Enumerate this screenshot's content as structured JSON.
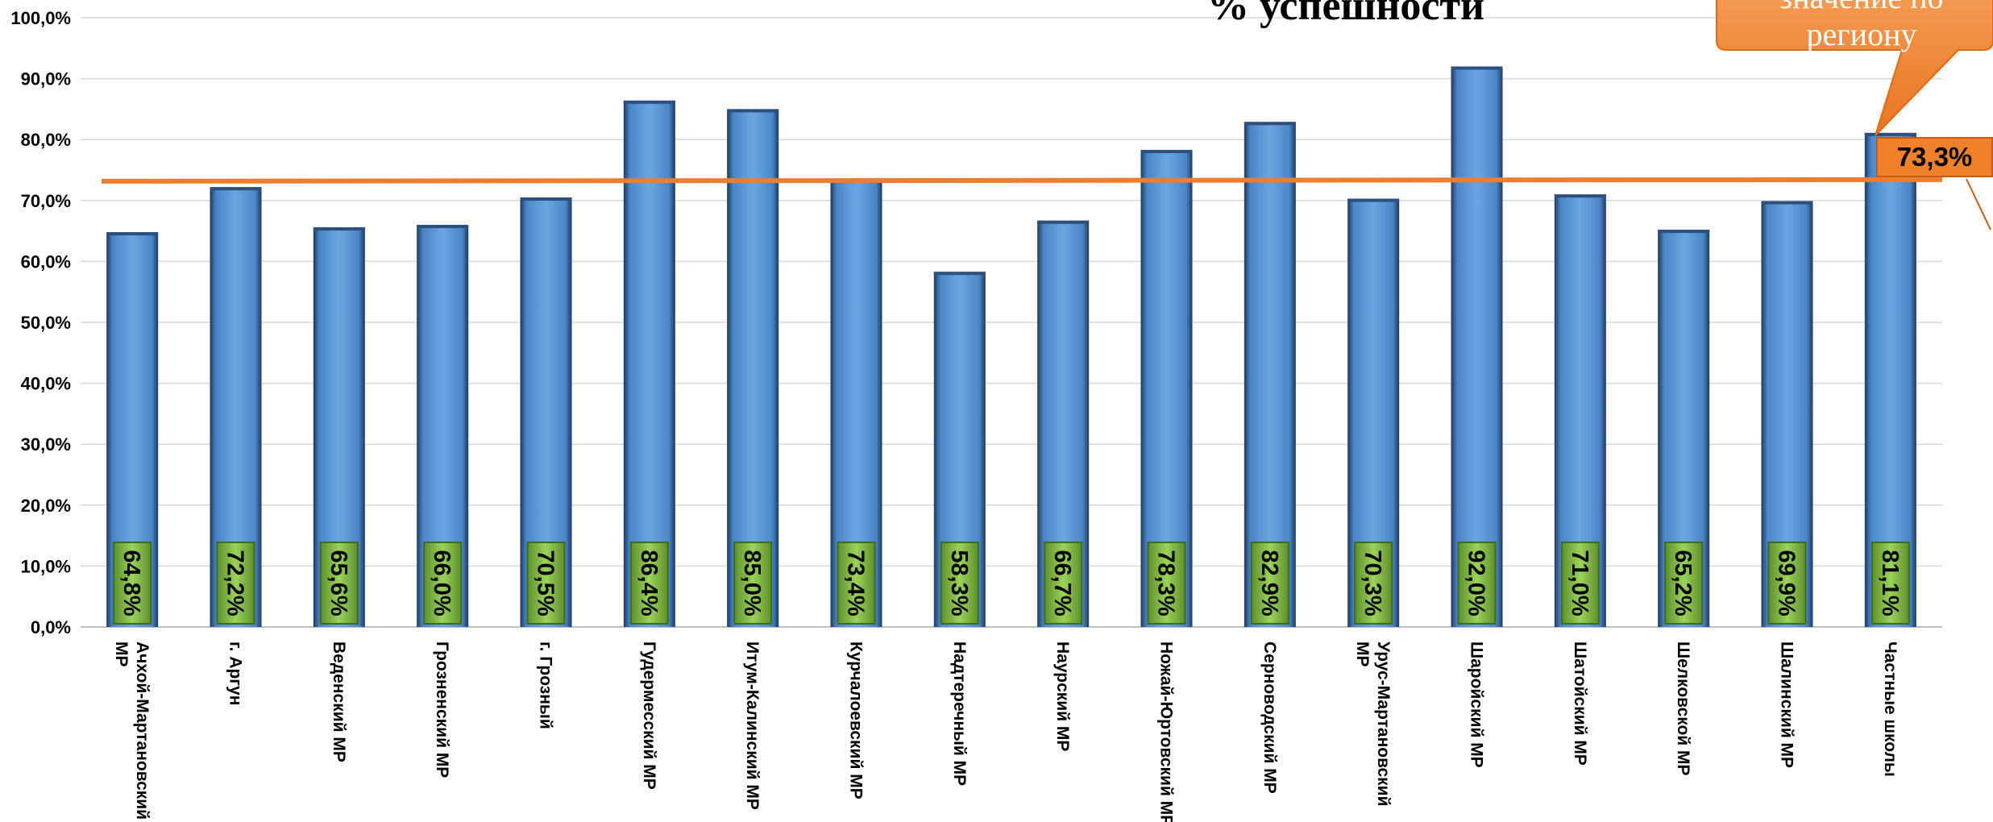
{
  "chart_data": {
    "type": "bar",
    "title": "% успешности",
    "categories": [
      "Ачхой-Мартановский МР",
      "г. Аргун",
      "Веденский МР",
      "Грозненский МР",
      "г. Грозный",
      "Гудермесский МР",
      "Итум-Калинский МР",
      "Курчалоевский МР",
      "Надтеречный МР",
      "Наурский МР",
      "Ножай-Юртовский МР",
      "Серноводский МР",
      "Урус-Мартановский МР",
      "Шаройский МР",
      "Шатойский МР",
      "Шелковской МР",
      "Шалинский МР",
      "Частные школы"
    ],
    "values": [
      64.8,
      72.2,
      65.6,
      66.0,
      70.5,
      86.4,
      85.0,
      73.4,
      58.3,
      66.7,
      78.3,
      82.9,
      70.3,
      92.0,
      71.0,
      65.2,
      69.9,
      81.1
    ],
    "value_labels": [
      "64,8%",
      "72,2%",
      "65,6%",
      "66,0%",
      "70,5%",
      "86,4%",
      "85,0%",
      "73,4%",
      "58,3%",
      "66,7%",
      "78,3%",
      "82,9%",
      "70,3%",
      "92,0%",
      "71,0%",
      "65,2%",
      "69,9%",
      "81,1%"
    ],
    "ylim": [
      0,
      100
    ],
    "yticks": [
      "0,0%",
      "10,0%",
      "20,0%",
      "30,0%",
      "40,0%",
      "50,0%",
      "60,0%",
      "70,0%",
      "80,0%",
      "90,0%",
      "100,0%"
    ],
    "grid": true,
    "average_line": {
      "value": 73.3,
      "label": "73,3%"
    },
    "callout_text": "значение по региону",
    "colors": {
      "bar": "#5b9bd5",
      "bar_dark": "#1f3a5f",
      "label_box": "#8bc34a",
      "average_line": "#ed7d31",
      "callout": "#f0802a"
    }
  }
}
